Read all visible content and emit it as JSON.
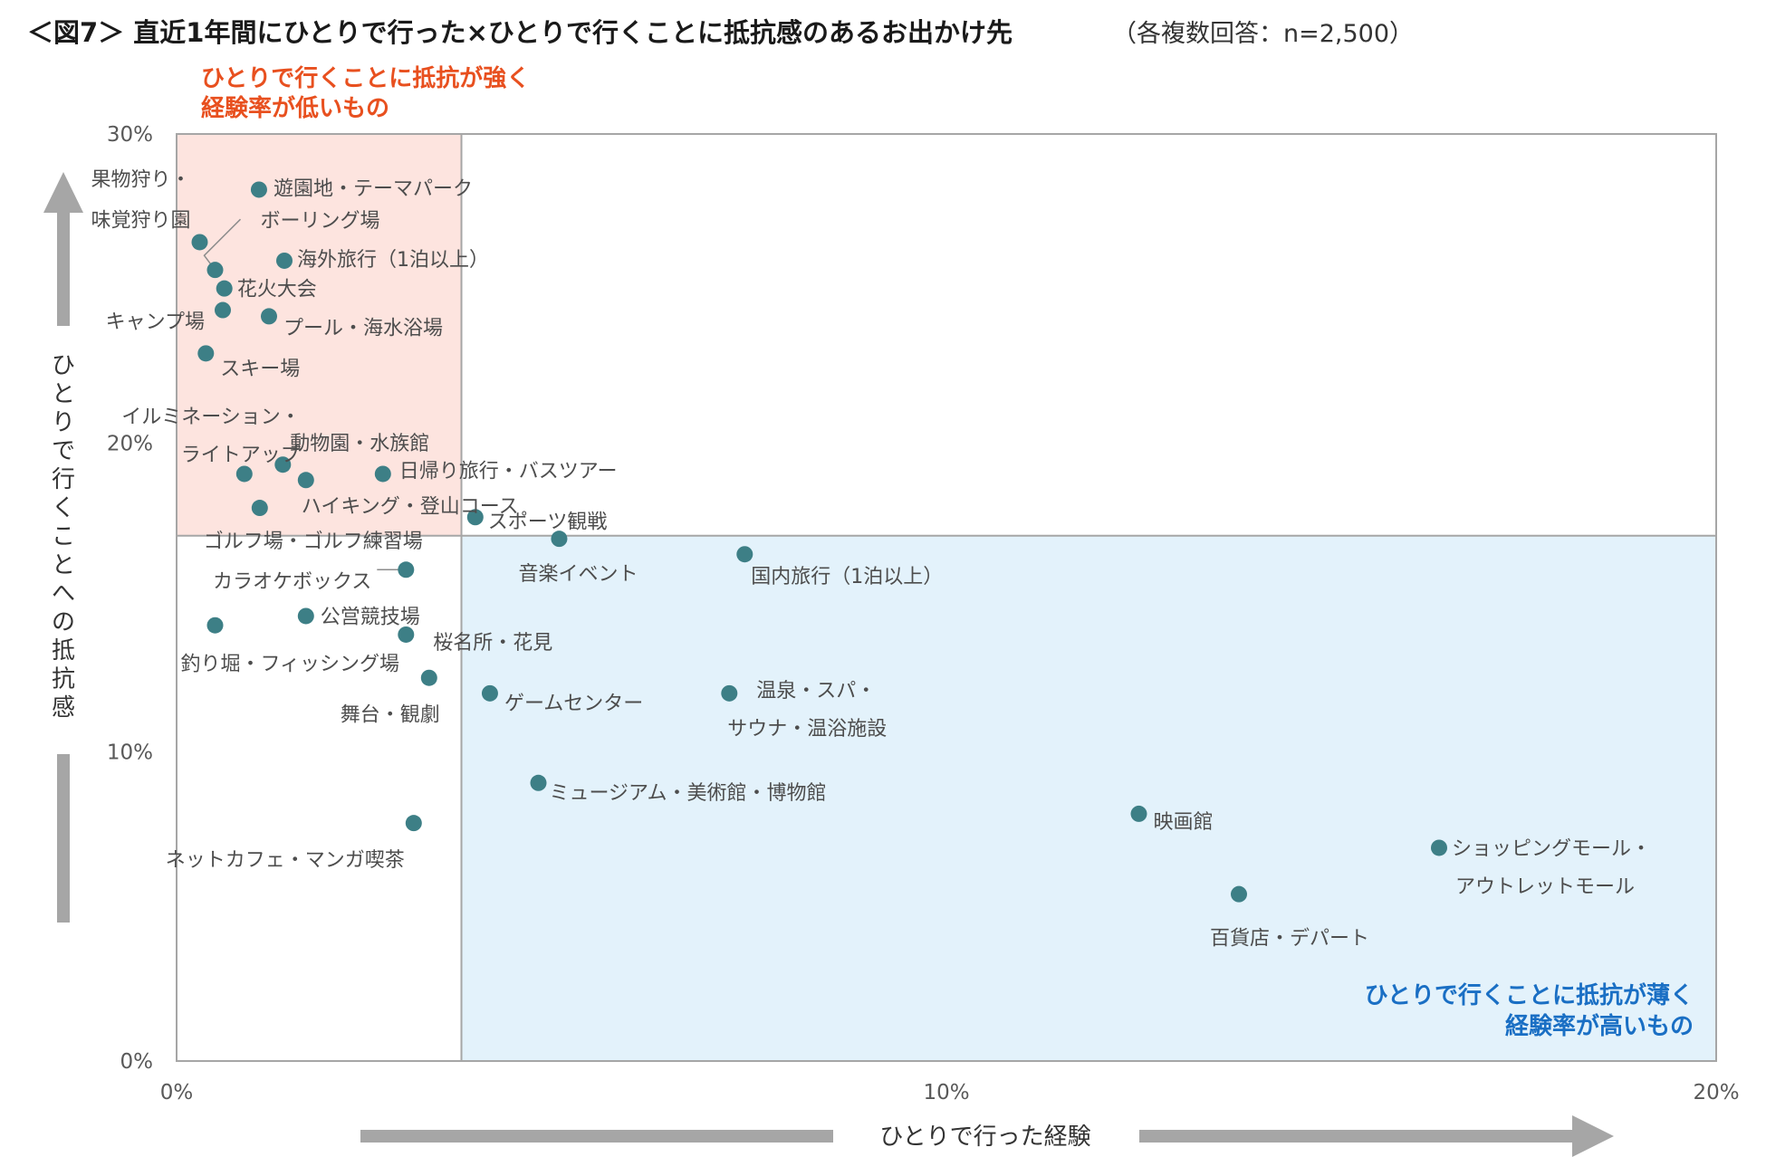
{
  "title": {
    "main": "＜図7＞ 直近1年間にひとりで行った×ひとりで行くことに抵抗感のあるお出かけ先",
    "note": "（各複数回答：n=2,500）"
  },
  "colors": {
    "point": "#3d7f86",
    "high_region_fill": "#fde4df",
    "low_region_fill": "#e3f2fb",
    "high_region_text": "#e8501f",
    "low_region_text": "#1a6fc4",
    "arrow": "#a6a6a6",
    "frame": "#a6a6a6"
  },
  "chart_data": {
    "type": "scatter",
    "xlabel": "ひとりで行った経験",
    "ylabel": "ひとりで行くことへの抵抗感",
    "xlim": [
      0,
      20
    ],
    "ylim": [
      0,
      30
    ],
    "x_ticks": [
      {
        "value": 0,
        "label": "0%"
      },
      {
        "value": 10,
        "label": "10%"
      },
      {
        "value": 20,
        "label": "20%"
      }
    ],
    "y_ticks": [
      {
        "value": 0,
        "label": "0%"
      },
      {
        "value": 10,
        "label": "10%"
      },
      {
        "value": 20,
        "label": "20%"
      },
      {
        "value": 30,
        "label": "30%"
      }
    ],
    "x_divider": 3.7,
    "y_divider": 17.0,
    "grid": false,
    "regions": {
      "high": [
        "ひとりで行くことに抵抗が強く",
        "経験率が低いもの"
      ],
      "low": [
        "ひとりで行くことに抵抗が薄く",
        "経験率が高いもの"
      ]
    },
    "points": [
      {
        "label": [
          "遊園地・テーマパーク"
        ],
        "x": 1.07,
        "y": 28.2
      },
      {
        "label": [
          "果物狩り・",
          "味覚狩り園"
        ],
        "x": 0.3,
        "y": 26.5
      },
      {
        "label": [
          "ボーリング場"
        ],
        "x": 0.5,
        "y": 25.6
      },
      {
        "label": [
          "海外旅行（1泊以上）"
        ],
        "x": 1.4,
        "y": 25.9
      },
      {
        "label": [
          "花火大会"
        ],
        "x": 0.62,
        "y": 25.0
      },
      {
        "label": [
          "キャンプ場"
        ],
        "x": 0.6,
        "y": 24.3
      },
      {
        "label": [
          "プール・海水浴場"
        ],
        "x": 1.2,
        "y": 24.1
      },
      {
        "label": [
          "スキー場"
        ],
        "x": 0.38,
        "y": 22.9
      },
      {
        "label": [
          "イルミネーション・",
          "ライトアップ"
        ],
        "x": 0.88,
        "y": 19.0
      },
      {
        "label": [
          "動物園・水族館"
        ],
        "x": 1.38,
        "y": 19.3
      },
      {
        "label": [
          "ハイキング・登山コース"
        ],
        "x": 1.68,
        "y": 18.8
      },
      {
        "label": [
          "日帰り旅行・バスツアー"
        ],
        "x": 2.68,
        "y": 19.0
      },
      {
        "label": [
          "ゴルフ場・ゴルフ練習場"
        ],
        "x": 1.08,
        "y": 17.9
      },
      {
        "label": [
          "スポーツ観戦"
        ],
        "x": 3.88,
        "y": 17.6
      },
      {
        "label": [
          "音楽イベント"
        ],
        "x": 4.97,
        "y": 16.9
      },
      {
        "label": [
          "国内旅行（1泊以上）"
        ],
        "x": 7.38,
        "y": 16.4
      },
      {
        "label": [
          "カラオケボックス"
        ],
        "x": 2.98,
        "y": 15.9
      },
      {
        "label": [
          "公営競技場"
        ],
        "x": 1.68,
        "y": 14.4
      },
      {
        "label": [
          "釣り堀・フィッシング場"
        ],
        "x": 0.5,
        "y": 14.1
      },
      {
        "label": [
          "桜名所・花見"
        ],
        "x": 2.98,
        "y": 13.8
      },
      {
        "label": [
          "舞台・観劇"
        ],
        "x": 3.28,
        "y": 12.4
      },
      {
        "label": [
          "ゲームセンター"
        ],
        "x": 4.07,
        "y": 11.9
      },
      {
        "label": [
          "温泉・スパ・",
          "サウナ・温浴施設"
        ],
        "x": 7.18,
        "y": 11.9
      },
      {
        "label": [
          "ミュージアム・美術館・博物館"
        ],
        "x": 4.7,
        "y": 9.0
      },
      {
        "label": [
          "ネットカフェ・マンガ喫茶"
        ],
        "x": 3.08,
        "y": 7.7
      },
      {
        "label": [
          "映画館"
        ],
        "x": 12.5,
        "y": 8.0
      },
      {
        "label": [
          "ショッピングモール・",
          "アウトレットモール"
        ],
        "x": 16.4,
        "y": 6.9
      },
      {
        "label": [
          "百貨店・デパート"
        ],
        "x": 13.8,
        "y": 5.4
      }
    ]
  }
}
